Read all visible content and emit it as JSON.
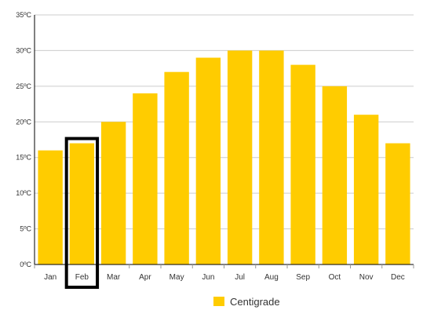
{
  "chart_data": {
    "type": "bar",
    "categories": [
      "Jan",
      "Feb",
      "Mar",
      "Apr",
      "May",
      "Jun",
      "Jul",
      "Aug",
      "Sep",
      "Oct",
      "Nov",
      "Dec"
    ],
    "series": [
      {
        "name": "Centigrade",
        "values": [
          16,
          17,
          20,
          24,
          27,
          29,
          30,
          30,
          28,
          25,
          21,
          17
        ]
      }
    ],
    "y_ticks": [
      "0ºC",
      "5ºC",
      "10ºC",
      "15ºC",
      "20ºC",
      "25ºC",
      "30ºC",
      "35ºC"
    ],
    "ylim": [
      0,
      35
    ],
    "grid": true,
    "legend_position": "bottom-center",
    "highlighted_category": "Feb",
    "colors": {
      "bar": "#ffcc00",
      "grid": "#cccccc",
      "axis": "#000000",
      "highlight_border": "#000000"
    }
  },
  "legend": {
    "label": "Centigrade"
  }
}
